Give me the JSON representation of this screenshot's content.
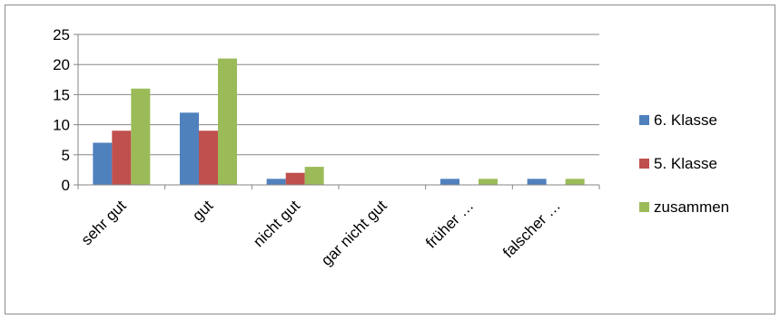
{
  "chart_data": {
    "type": "bar",
    "categories": [
      "sehr gut",
      "gut",
      "nicht gut",
      "gar nicht gut",
      "früher …",
      "falscher …"
    ],
    "series": [
      {
        "name": "6. Klasse",
        "values": [
          7,
          12,
          1,
          0,
          1,
          1
        ],
        "color": "#4F81BD"
      },
      {
        "name": "5. Klasse",
        "values": [
          9,
          9,
          2,
          0,
          0,
          0
        ],
        "color": "#C0504D"
      },
      {
        "name": "zusammen",
        "values": [
          16,
          21,
          3,
          0,
          1,
          1
        ],
        "color": "#9BBB59"
      }
    ],
    "yticks": [
      "0",
      "5",
      "10",
      "15",
      "20",
      "25"
    ],
    "ylim": [
      0,
      25
    ],
    "grid": true,
    "legend": "right"
  }
}
